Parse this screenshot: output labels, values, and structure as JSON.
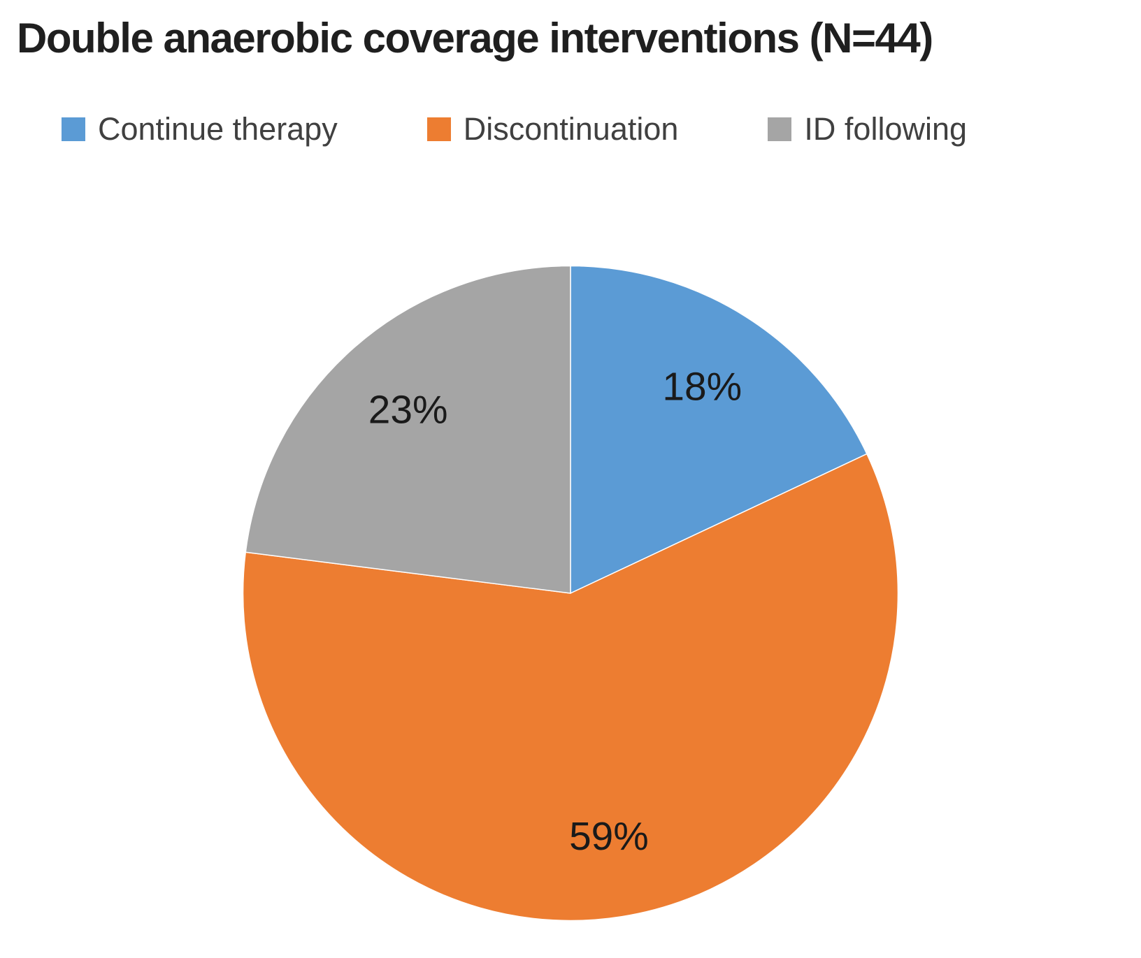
{
  "chart_data": {
    "type": "pie",
    "title": "Double anaerobic coverage interventions (N=44)",
    "total_n": 44,
    "categories": [
      "Continue therapy",
      "Discontinuation",
      "ID following"
    ],
    "values": [
      18,
      59,
      23
    ],
    "data_labels": [
      "18%",
      "59%",
      "23%"
    ],
    "colors": [
      "#5B9BD5",
      "#ED7D31",
      "#A5A5A5"
    ],
    "legend_position": "top",
    "start_angle_deg": -90,
    "direction": "clockwise",
    "label_radius_ratio": 0.75
  }
}
